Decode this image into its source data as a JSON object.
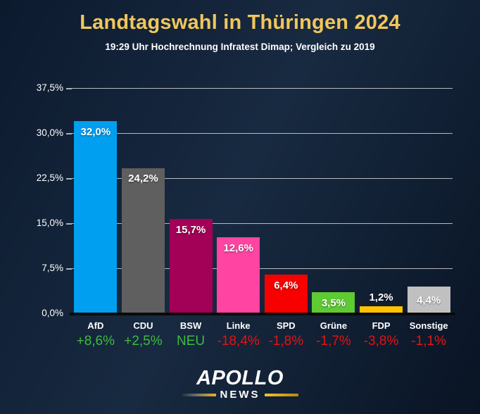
{
  "title": "Landtagswahl in Thüringen 2024",
  "subtitle": "19:29 Uhr Hochrechnung Infratest Dimap; Vergleich zu 2019",
  "logo": {
    "brand": "APOLLO",
    "sub": "NEWS"
  },
  "colors": {
    "background_top": "#0c1a2e",
    "background_mid": "#182a41",
    "background_bottom": "#091424",
    "title_gold": "#f0c65c",
    "text_white": "#ffffff",
    "gridline": "#c7cbd1",
    "baseline": "#0a0a0a",
    "change_positive": "#3fbb3f",
    "change_negative": "#e61212",
    "logo_gold": "#e8b427"
  },
  "chart_data": {
    "type": "bar",
    "title": "Landtagswahl in Thüringen 2024",
    "subtitle": "19:29 Uhr Hochrechnung Infratest Dimap; Vergleich zu 2019",
    "categories": [
      "AfD",
      "CDU",
      "BSW",
      "Linke",
      "SPD",
      "Grüne",
      "FDP",
      "Sonstige"
    ],
    "values": [
      32.0,
      24.2,
      15.7,
      12.6,
      6.4,
      3.5,
      1.2,
      4.4
    ],
    "value_labels": [
      "32,0%",
      "24,2%",
      "15,7%",
      "12,6%",
      "6,4%",
      "3,5%",
      "1,2%",
      "4,4%"
    ],
    "bar_colors": [
      "#009ff0",
      "#5f5f5f",
      "#a30057",
      "#ff44a1",
      "#f80000",
      "#5dcb31",
      "#ffc200",
      "#c0c0c0"
    ],
    "changes": [
      {
        "label": "+8,6%",
        "direction": "up"
      },
      {
        "label": "+2,5%",
        "direction": "up"
      },
      {
        "label": "NEU",
        "direction": "new"
      },
      {
        "label": "-18,4%",
        "direction": "down"
      },
      {
        "label": "-1,8%",
        "direction": "down"
      },
      {
        "label": "-1,7%",
        "direction": "down"
      },
      {
        "label": "-3,8%",
        "direction": "down"
      },
      {
        "label": "-1,1%",
        "direction": "down"
      }
    ],
    "ylim": [
      0,
      37.5
    ],
    "yticks": [
      {
        "label": "37,5%",
        "value": 37.5
      },
      {
        "label": "30,0%",
        "value": 30.0
      },
      {
        "label": "22,5%",
        "value": 22.5
      },
      {
        "label": "15,0%",
        "value": 15.0
      },
      {
        "label": "7,5%",
        "value": 7.5
      },
      {
        "label": "0,0%",
        "value": 0.0
      }
    ],
    "grid": true,
    "legend": false,
    "xlabel": "",
    "ylabel": ""
  }
}
